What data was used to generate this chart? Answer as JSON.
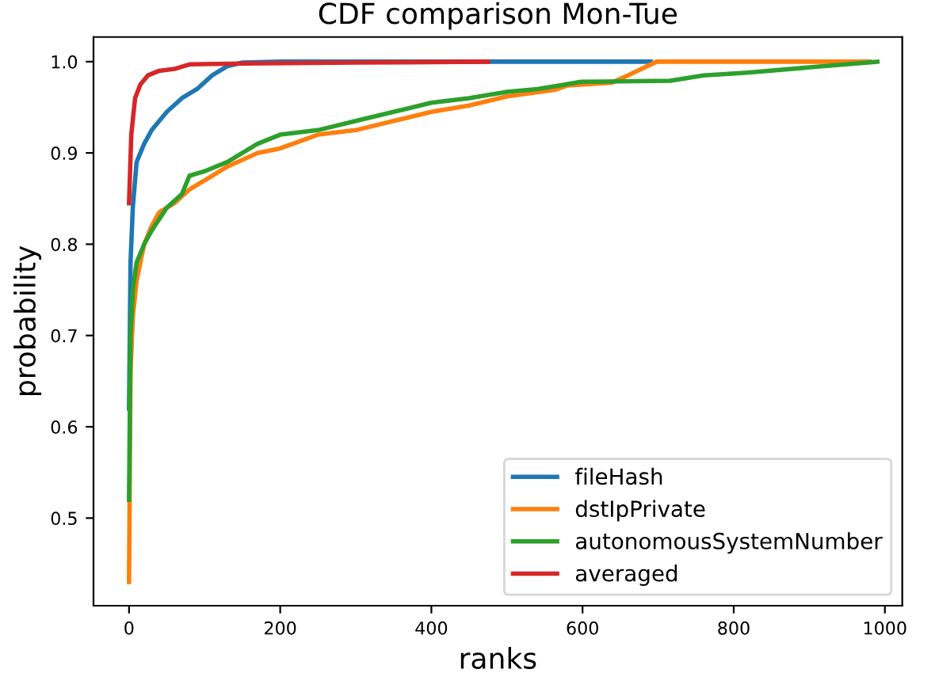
{
  "chart_data": {
    "type": "line",
    "title": "CDF comparison Mon-Tue",
    "xlabel": "ranks",
    "ylabel": "probability",
    "xlim": [
      -47,
      1023
    ],
    "ylim": [
      0.404,
      1.027
    ],
    "xticks": [
      0,
      200,
      400,
      600,
      800,
      1000
    ],
    "yticks": [
      {
        "value": 0.5,
        "label": "0.5"
      },
      {
        "value": 0.6,
        "label": "0.6"
      },
      {
        "value": 0.7,
        "label": "0.7"
      },
      {
        "value": 0.8,
        "label": "0.8"
      },
      {
        "value": 0.9,
        "label": "0.9"
      },
      {
        "value": 1.0,
        "label": "1.0"
      }
    ],
    "grid": false,
    "legend": "bottom right",
    "marker": "none",
    "line_style": "solid",
    "series": [
      {
        "name": "fileHash",
        "color": "#1f77b4",
        "x": [
          0,
          2,
          5,
          10,
          20,
          30,
          50,
          70,
          90,
          110,
          130,
          150,
          200,
          690
        ],
        "values": [
          0.62,
          0.78,
          0.84,
          0.89,
          0.91,
          0.925,
          0.945,
          0.96,
          0.97,
          0.985,
          0.995,
          0.999,
          1.0,
          1.0
        ]
      },
      {
        "name": "dstIpPrivate",
        "color": "#ff7f0e",
        "x": [
          0,
          2,
          5,
          10,
          20,
          30,
          40,
          60,
          80,
          100,
          130,
          170,
          200,
          250,
          300,
          350,
          400,
          450,
          500,
          563,
          580,
          639,
          660,
          698,
          980
        ],
        "values": [
          0.43,
          0.66,
          0.72,
          0.76,
          0.8,
          0.82,
          0.835,
          0.845,
          0.86,
          0.87,
          0.885,
          0.9,
          0.905,
          0.92,
          0.925,
          0.935,
          0.945,
          0.952,
          0.962,
          0.969,
          0.974,
          0.977,
          0.985,
          1.0,
          1.0
        ]
      },
      {
        "name": "autonomousSystemNumber",
        "color": "#2ca02c",
        "x": [
          0,
          2,
          5,
          10,
          20,
          30,
          50,
          70,
          80,
          100,
          130,
          170,
          200,
          250,
          300,
          350,
          400,
          450,
          500,
          540,
          577,
          598,
          716,
          760,
          818,
          990
        ],
        "values": [
          0.52,
          0.7,
          0.75,
          0.78,
          0.8,
          0.815,
          0.84,
          0.855,
          0.875,
          0.88,
          0.89,
          0.91,
          0.92,
          0.925,
          0.935,
          0.945,
          0.955,
          0.96,
          0.967,
          0.97,
          0.975,
          0.978,
          0.979,
          0.985,
          0.988,
          1.0
        ]
      },
      {
        "name": "averaged",
        "color": "#d62728",
        "x": [
          0,
          3,
          8,
          15,
          25,
          40,
          60,
          80,
          150,
          300,
          475
        ],
        "values": [
          0.845,
          0.92,
          0.96,
          0.975,
          0.985,
          0.99,
          0.992,
          0.997,
          0.998,
          0.999,
          1.0
        ]
      }
    ]
  }
}
